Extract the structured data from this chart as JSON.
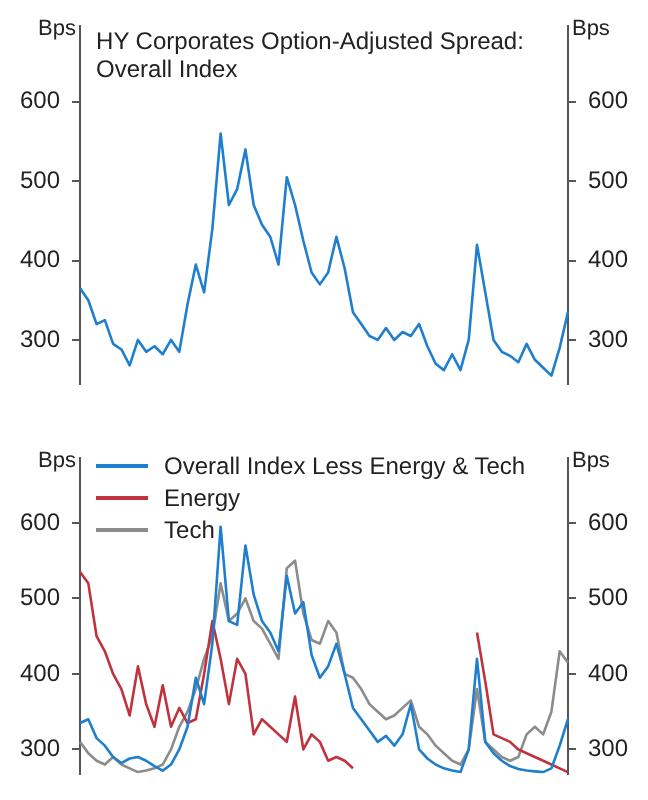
{
  "chart_data": [
    {
      "type": "line",
      "title": "HY Corporates Option-Adjusted Spread:\nOverall Index",
      "ylabel": "Bps",
      "y2label": "Bps",
      "tick_labels": "y",
      "categories": [
        null,
        null,
        null,
        null,
        null,
        null,
        null,
        null,
        null,
        null,
        null,
        null,
        null,
        null,
        null,
        null,
        null,
        null,
        null,
        null,
        null,
        null,
        null,
        null,
        null,
        null,
        null,
        null,
        null,
        null,
        null,
        null,
        null,
        null,
        null,
        null,
        null,
        null,
        null,
        null,
        null,
        null,
        null,
        null,
        null,
        null,
        null,
        null,
        null,
        null,
        null,
        null,
        null,
        null,
        null,
        null,
        null,
        null,
        null,
        null
      ],
      "series": [
        {
          "color": "#1f7fcf",
          "values": [
            365,
            350,
            320,
            325,
            295,
            288,
            268,
            300,
            285,
            292,
            282,
            300,
            285,
            345,
            395,
            360,
            440,
            560,
            470,
            490,
            540,
            470,
            445,
            430,
            395,
            505,
            470,
            425,
            385,
            370,
            385,
            430,
            390,
            335,
            320,
            305,
            300,
            315,
            300,
            310,
            305,
            320,
            292,
            270,
            262,
            282,
            262,
            300,
            420,
            360,
            300,
            285,
            280,
            272,
            295,
            275,
            265,
            255,
            290,
            335
          ]
        }
      ],
      "ylim": [
        245,
        695
      ],
      "yticks": [
        300,
        400,
        500,
        600
      ],
      "y2lim": [
        245,
        695
      ],
      "y2ticks": [
        300,
        400,
        500,
        600
      ]
    },
    {
      "type": "line",
      "ylabel": "Bps",
      "y2label": "Bps",
      "tick_labels": "y",
      "legend": "top left",
      "categories": [
        null,
        null,
        null,
        null,
        null,
        null,
        null,
        null,
        null,
        null,
        null,
        null,
        null,
        null,
        null,
        null,
        null,
        null,
        null,
        null,
        null,
        null,
        null,
        null,
        null,
        null,
        null,
        null,
        null,
        null,
        null,
        null,
        null,
        null,
        null,
        null,
        null,
        null,
        null,
        null,
        null,
        null,
        null,
        null,
        null,
        null,
        null,
        null,
        null,
        null,
        null,
        null,
        null,
        null,
        null,
        null,
        null,
        null,
        null,
        null
      ],
      "series": [
        {
          "name": "Overall Index Less Energy & Tech",
          "color": "#1f7fcf",
          "values": [
            335,
            340,
            315,
            305,
            290,
            282,
            288,
            290,
            285,
            278,
            272,
            280,
            300,
            330,
            395,
            360,
            440,
            595,
            470,
            465,
            570,
            505,
            470,
            455,
            430,
            530,
            480,
            495,
            425,
            395,
            410,
            440,
            400,
            355,
            340,
            325,
            310,
            318,
            305,
            320,
            360,
            300,
            288,
            280,
            275,
            272,
            270,
            300,
            420,
            310,
            295,
            285,
            278,
            274,
            272,
            271,
            270,
            275,
            305,
            340
          ]
        },
        {
          "name": "Energy",
          "color": "#c0323c",
          "values": [
            535,
            520,
            450,
            430,
            400,
            380,
            345,
            410,
            360,
            330,
            385,
            330,
            355,
            335,
            340,
            400,
            470,
            420,
            360,
            420,
            400,
            320,
            340,
            330,
            320,
            310,
            370,
            300,
            320,
            310,
            285,
            290,
            285,
            275,
            null,
            null,
            null,
            null,
            null,
            null,
            null,
            null,
            null,
            null,
            null,
            null,
            null,
            null,
            455,
            390,
            320,
            315,
            310,
            300,
            295,
            290,
            285,
            280,
            275,
            270
          ]
        },
        {
          "name": "Tech",
          "color": "#8c8c8c",
          "values": [
            310,
            295,
            285,
            280,
            290,
            280,
            275,
            270,
            272,
            275,
            280,
            300,
            330,
            350,
            380,
            420,
            450,
            520,
            470,
            480,
            500,
            470,
            460,
            440,
            420,
            540,
            550,
            480,
            445,
            440,
            470,
            455,
            400,
            395,
            380,
            360,
            350,
            340,
            345,
            355,
            365,
            330,
            320,
            305,
            295,
            285,
            280,
            300,
            380,
            310,
            300,
            290,
            285,
            290,
            320,
            330,
            320,
            350,
            430,
            415
          ]
        }
      ],
      "ylim": [
        268,
        686
      ],
      "yticks": [
        300,
        400,
        500,
        600
      ],
      "y2lim": [
        268,
        686
      ],
      "y2ticks": [
        300,
        400,
        500,
        600
      ]
    }
  ]
}
